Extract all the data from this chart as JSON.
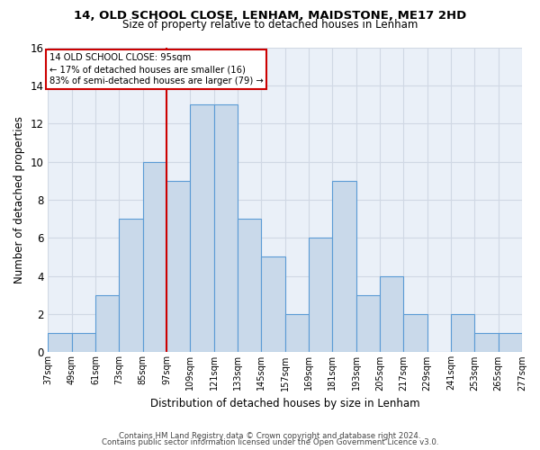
{
  "title1": "14, OLD SCHOOL CLOSE, LENHAM, MAIDSTONE, ME17 2HD",
  "title2": "Size of property relative to detached houses in Lenham",
  "xlabel": "Distribution of detached houses by size in Lenham",
  "ylabel": "Number of detached properties",
  "footnote1": "Contains HM Land Registry data © Crown copyright and database right 2024.",
  "footnote2": "Contains public sector information licensed under the Open Government Licence v3.0.",
  "annotation_line1": "14 OLD SCHOOL CLOSE: 95sqm",
  "annotation_line2": "← 17% of detached houses are smaller (16)",
  "annotation_line3": "83% of semi-detached houses are larger (79) →",
  "bar_left_edges": [
    37,
    49,
    61,
    73,
    85,
    97,
    109,
    121,
    133,
    145,
    157,
    169,
    181,
    193,
    205,
    217,
    229,
    241,
    253,
    265
  ],
  "bar_heights": [
    1,
    1,
    3,
    7,
    10,
    9,
    13,
    13,
    7,
    5,
    2,
    6,
    9,
    3,
    4,
    2,
    0,
    2,
    1,
    1
  ],
  "bin_width": 12,
  "bar_face_color": "#c9d9ea",
  "bar_edge_color": "#5b9bd5",
  "vline_color": "#cc0000",
  "vline_x": 97,
  "annotation_box_color": "#cc0000",
  "grid_color": "#d0d8e4",
  "background_color": "#eaf0f8",
  "ylim": [
    0,
    16
  ],
  "yticks": [
    0,
    2,
    4,
    6,
    8,
    10,
    12,
    14,
    16
  ],
  "x_tick_labels": [
    "37sqm",
    "49sqm",
    "61sqm",
    "73sqm",
    "85sqm",
    "97sqm",
    "109sqm",
    "121sqm",
    "133sqm",
    "145sqm",
    "157sqm",
    "169sqm",
    "181sqm",
    "193sqm",
    "205sqm",
    "217sqm",
    "229sqm",
    "241sqm",
    "253sqm",
    "265sqm",
    "277sqm"
  ]
}
